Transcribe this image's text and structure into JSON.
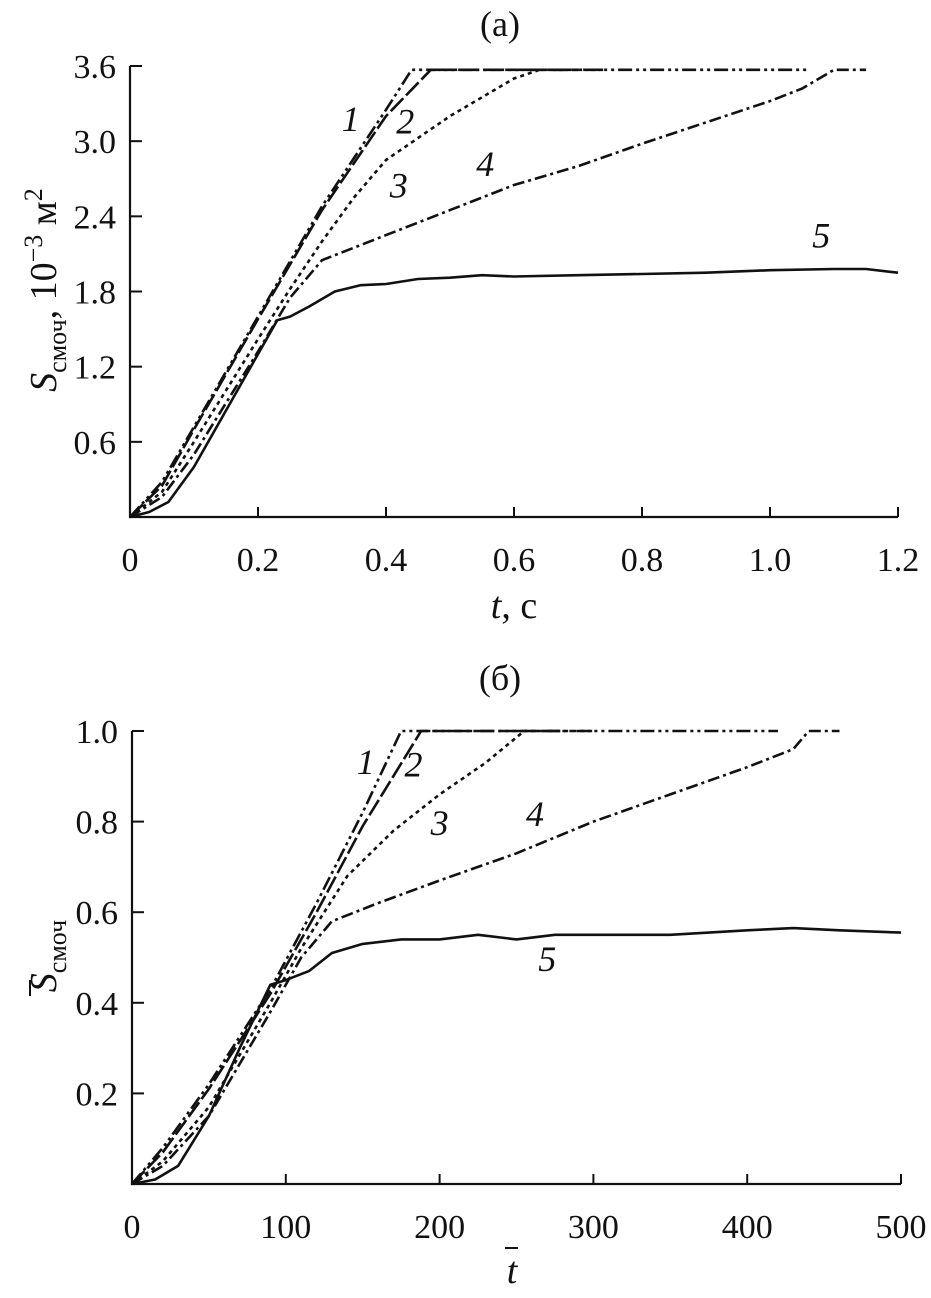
{
  "chart_data": [
    {
      "type": "line",
      "title": "(a)",
      "xlabel_var": "t",
      "xlabel_unit": ", с",
      "ylabel_var": "S",
      "ylabel_sub": "смоч",
      "ylabel_unit": ", 10",
      "ylabel_exp": "−3",
      "ylabel_unit2": " м",
      "ylabel_unit2_exp": "2",
      "xlim": [
        0,
        1.2
      ],
      "ylim": [
        0,
        3.6
      ],
      "xticks": [
        0,
        0.2,
        0.4,
        0.6,
        0.8,
        1.0,
        1.2
      ],
      "xtick_labels": [
        "0",
        "0.2",
        "0.4",
        "0.6",
        "0.8",
        "1.0",
        "1.2"
      ],
      "yticks": [
        0.6,
        1.2,
        1.8,
        2.4,
        3.0,
        3.6
      ],
      "ytick_labels": [
        "0.6",
        "1.2",
        "1.8",
        "2.4",
        "3.0",
        "3.6"
      ],
      "series": [
        {
          "label": "1",
          "dash": "14 4 3 4 3 4",
          "label_pos": [
            0.345,
            3.08
          ],
          "points": [
            [
              0,
              0
            ],
            [
              0.05,
              0.28
            ],
            [
              0.1,
              0.72
            ],
            [
              0.2,
              1.6
            ],
            [
              0.3,
              2.48
            ],
            [
              0.4,
              3.25
            ],
            [
              0.44,
              3.57
            ],
            [
              0.5,
              3.57
            ],
            [
              0.6,
              3.57
            ],
            [
              0.8,
              3.57
            ],
            [
              1.0,
              3.57
            ],
            [
              1.06,
              3.57
            ]
          ]
        },
        {
          "label": "2",
          "dash": "18 4",
          "label_pos": [
            0.43,
            3.06
          ],
          "points": [
            [
              0,
              0
            ],
            [
              0.05,
              0.25
            ],
            [
              0.1,
              0.7
            ],
            [
              0.2,
              1.58
            ],
            [
              0.3,
              2.45
            ],
            [
              0.4,
              3.2
            ],
            [
              0.47,
              3.57
            ],
            [
              0.55,
              3.57
            ],
            [
              0.7,
              3.57
            ]
          ]
        },
        {
          "label": "3",
          "dash": "4 4",
          "label_pos": [
            0.42,
            2.55
          ],
          "points": [
            [
              0,
              0
            ],
            [
              0.05,
              0.2
            ],
            [
              0.1,
              0.6
            ],
            [
              0.2,
              1.42
            ],
            [
              0.25,
              1.82
            ],
            [
              0.3,
              2.2
            ],
            [
              0.35,
              2.55
            ],
            [
              0.4,
              2.85
            ],
            [
              0.5,
              3.2
            ],
            [
              0.6,
              3.5
            ],
            [
              0.64,
              3.57
            ],
            [
              0.74,
              3.57
            ]
          ]
        },
        {
          "label": "4",
          "dash": "12 4 3 4",
          "label_pos": [
            0.555,
            2.72
          ],
          "points": [
            [
              0,
              0
            ],
            [
              0.05,
              0.16
            ],
            [
              0.1,
              0.5
            ],
            [
              0.2,
              1.32
            ],
            [
              0.25,
              1.75
            ],
            [
              0.3,
              2.05
            ],
            [
              0.35,
              2.15
            ],
            [
              0.4,
              2.25
            ],
            [
              0.5,
              2.45
            ],
            [
              0.6,
              2.65
            ],
            [
              0.7,
              2.8
            ],
            [
              0.8,
              2.98
            ],
            [
              0.9,
              3.15
            ],
            [
              1.0,
              3.32
            ],
            [
              1.05,
              3.42
            ],
            [
              1.1,
              3.57
            ],
            [
              1.15,
              3.57
            ]
          ]
        },
        {
          "label": "5",
          "dash": "",
          "label_pos": [
            1.08,
            2.15
          ],
          "points": [
            [
              0,
              0
            ],
            [
              0.03,
              0.04
            ],
            [
              0.06,
              0.12
            ],
            [
              0.1,
              0.4
            ],
            [
              0.15,
              0.85
            ],
            [
              0.2,
              1.3
            ],
            [
              0.23,
              1.57
            ],
            [
              0.25,
              1.6
            ],
            [
              0.28,
              1.68
            ],
            [
              0.32,
              1.8
            ],
            [
              0.36,
              1.85
            ],
            [
              0.4,
              1.86
            ],
            [
              0.45,
              1.9
            ],
            [
              0.5,
              1.91
            ],
            [
              0.55,
              1.93
            ],
            [
              0.6,
              1.92
            ],
            [
              0.7,
              1.93
            ],
            [
              0.8,
              1.94
            ],
            [
              0.9,
              1.95
            ],
            [
              1.0,
              1.97
            ],
            [
              1.1,
              1.98
            ],
            [
              1.15,
              1.98
            ],
            [
              1.2,
              1.95
            ]
          ]
        }
      ]
    },
    {
      "type": "line",
      "title": "(б)",
      "xlabel_var": "t",
      "ylabel_var": "S",
      "ylabel_sub": "смоч",
      "xlim": [
        0,
        500
      ],
      "ylim": [
        0,
        1.0
      ],
      "xticks": [
        0,
        100,
        200,
        300,
        400,
        500
      ],
      "xtick_labels": [
        "0",
        "100",
        "200",
        "300",
        "400",
        "500"
      ],
      "yticks": [
        0.2,
        0.4,
        0.6,
        0.8,
        1.0
      ],
      "ytick_labels": [
        "0.2",
        "0.4",
        "0.6",
        "0.8",
        "1.0"
      ],
      "series": [
        {
          "label": "1",
          "dash": "14 4 3 4 3 4",
          "label_pos": [
            152,
            0.905
          ],
          "points": [
            [
              0,
              0
            ],
            [
              20,
              0.08
            ],
            [
              50,
              0.22
            ],
            [
              90,
              0.43
            ],
            [
              120,
              0.62
            ],
            [
              150,
              0.82
            ],
            [
              175,
              1.0
            ],
            [
              200,
              1.0
            ],
            [
              300,
              1.0
            ],
            [
              420,
              1.0
            ]
          ]
        },
        {
          "label": "2",
          "dash": "18 4",
          "label_pos": [
            183,
            0.9
          ],
          "points": [
            [
              0,
              0
            ],
            [
              20,
              0.07
            ],
            [
              50,
              0.21
            ],
            [
              90,
              0.42
            ],
            [
              120,
              0.6
            ],
            [
              150,
              0.79
            ],
            [
              188,
              1.0
            ],
            [
              230,
              1.0
            ],
            [
              280,
              1.0
            ]
          ]
        },
        {
          "label": "3",
          "dash": "4 4",
          "label_pos": [
            200,
            0.77
          ],
          "points": [
            [
              0,
              0
            ],
            [
              20,
              0.05
            ],
            [
              50,
              0.17
            ],
            [
              90,
              0.4
            ],
            [
              110,
              0.52
            ],
            [
              140,
              0.68
            ],
            [
              170,
              0.78
            ],
            [
              200,
              0.86
            ],
            [
              230,
              0.93
            ],
            [
              255,
              1.0
            ],
            [
              300,
              1.0
            ]
          ]
        },
        {
          "label": "4",
          "dash": "12 4 3 4",
          "label_pos": [
            262,
            0.79
          ],
          "points": [
            [
              0,
              0
            ],
            [
              20,
              0.04
            ],
            [
              50,
              0.15
            ],
            [
              90,
              0.38
            ],
            [
              110,
              0.5
            ],
            [
              130,
              0.58
            ],
            [
              160,
              0.62
            ],
            [
              200,
              0.67
            ],
            [
              250,
              0.73
            ],
            [
              300,
              0.8
            ],
            [
              350,
              0.86
            ],
            [
              400,
              0.92
            ],
            [
              430,
              0.96
            ],
            [
              440,
              1.0
            ],
            [
              460,
              1.0
            ]
          ]
        },
        {
          "label": "5",
          "dash": "",
          "label_pos": [
            270,
            0.47
          ],
          "points": [
            [
              0,
              0
            ],
            [
              15,
              0.01
            ],
            [
              30,
              0.04
            ],
            [
              50,
              0.15
            ],
            [
              70,
              0.3
            ],
            [
              90,
              0.44
            ],
            [
              100,
              0.45
            ],
            [
              115,
              0.47
            ],
            [
              130,
              0.51
            ],
            [
              150,
              0.53
            ],
            [
              175,
              0.54
            ],
            [
              200,
              0.54
            ],
            [
              225,
              0.55
            ],
            [
              250,
              0.54
            ],
            [
              275,
              0.55
            ],
            [
              300,
              0.55
            ],
            [
              350,
              0.55
            ],
            [
              400,
              0.56
            ],
            [
              430,
              0.565
            ],
            [
              460,
              0.56
            ],
            [
              500,
              0.555
            ]
          ]
        }
      ]
    }
  ]
}
